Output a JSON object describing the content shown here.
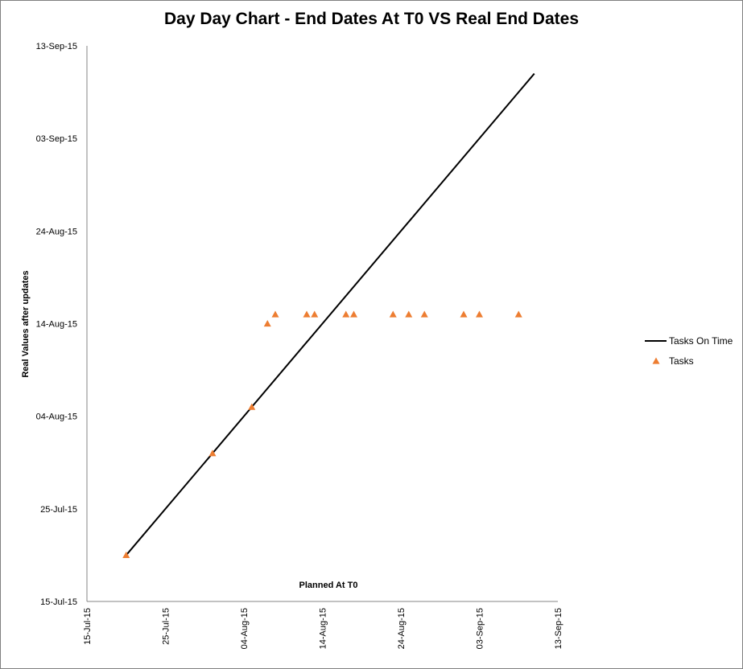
{
  "chart_data": {
    "type": "scatter",
    "title": "Day Day Chart - End Dates At T0 VS Real End Dates",
    "xlabel": "Planned At T0",
    "ylabel": "Real Values after updates",
    "x_ticks": [
      "15-Jul-15",
      "25-Jul-15",
      "04-Aug-15",
      "14-Aug-15",
      "24-Aug-15",
      "03-Sep-15",
      "13-Sep-15"
    ],
    "y_ticks": [
      "15-Jul-15",
      "25-Jul-15",
      "04-Aug-15",
      "14-Aug-15",
      "24-Aug-15",
      "03-Sep-15",
      "13-Sep-15"
    ],
    "xlim": [
      "2015-07-15",
      "2015-09-13"
    ],
    "ylim": [
      "2015-07-15",
      "2015-09-13"
    ],
    "grid": false,
    "legend_position": "right",
    "series": [
      {
        "name": "Tasks On Time",
        "kind": "line",
        "color": "#000000",
        "x": [
          "2015-07-20",
          "2015-09-10"
        ],
        "y": [
          "2015-07-20",
          "2015-09-10"
        ]
      },
      {
        "name": "Tasks",
        "kind": "scatter",
        "marker": "triangle",
        "color": "#ED7D31",
        "x": [
          "2015-07-20",
          "2015-07-31",
          "2015-08-05",
          "2015-08-07",
          "2015-08-08",
          "2015-08-12",
          "2015-08-13",
          "2015-08-17",
          "2015-08-18",
          "2015-08-23",
          "2015-08-25",
          "2015-08-27",
          "2015-09-01",
          "2015-09-03",
          "2015-09-08"
        ],
        "y": [
          "2015-07-20",
          "2015-07-31",
          "2015-08-05",
          "2015-08-14",
          "2015-08-15",
          "2015-08-15",
          "2015-08-15",
          "2015-08-15",
          "2015-08-15",
          "2015-08-15",
          "2015-08-15",
          "2015-08-15",
          "2015-08-15",
          "2015-08-15",
          "2015-08-15"
        ]
      }
    ]
  }
}
